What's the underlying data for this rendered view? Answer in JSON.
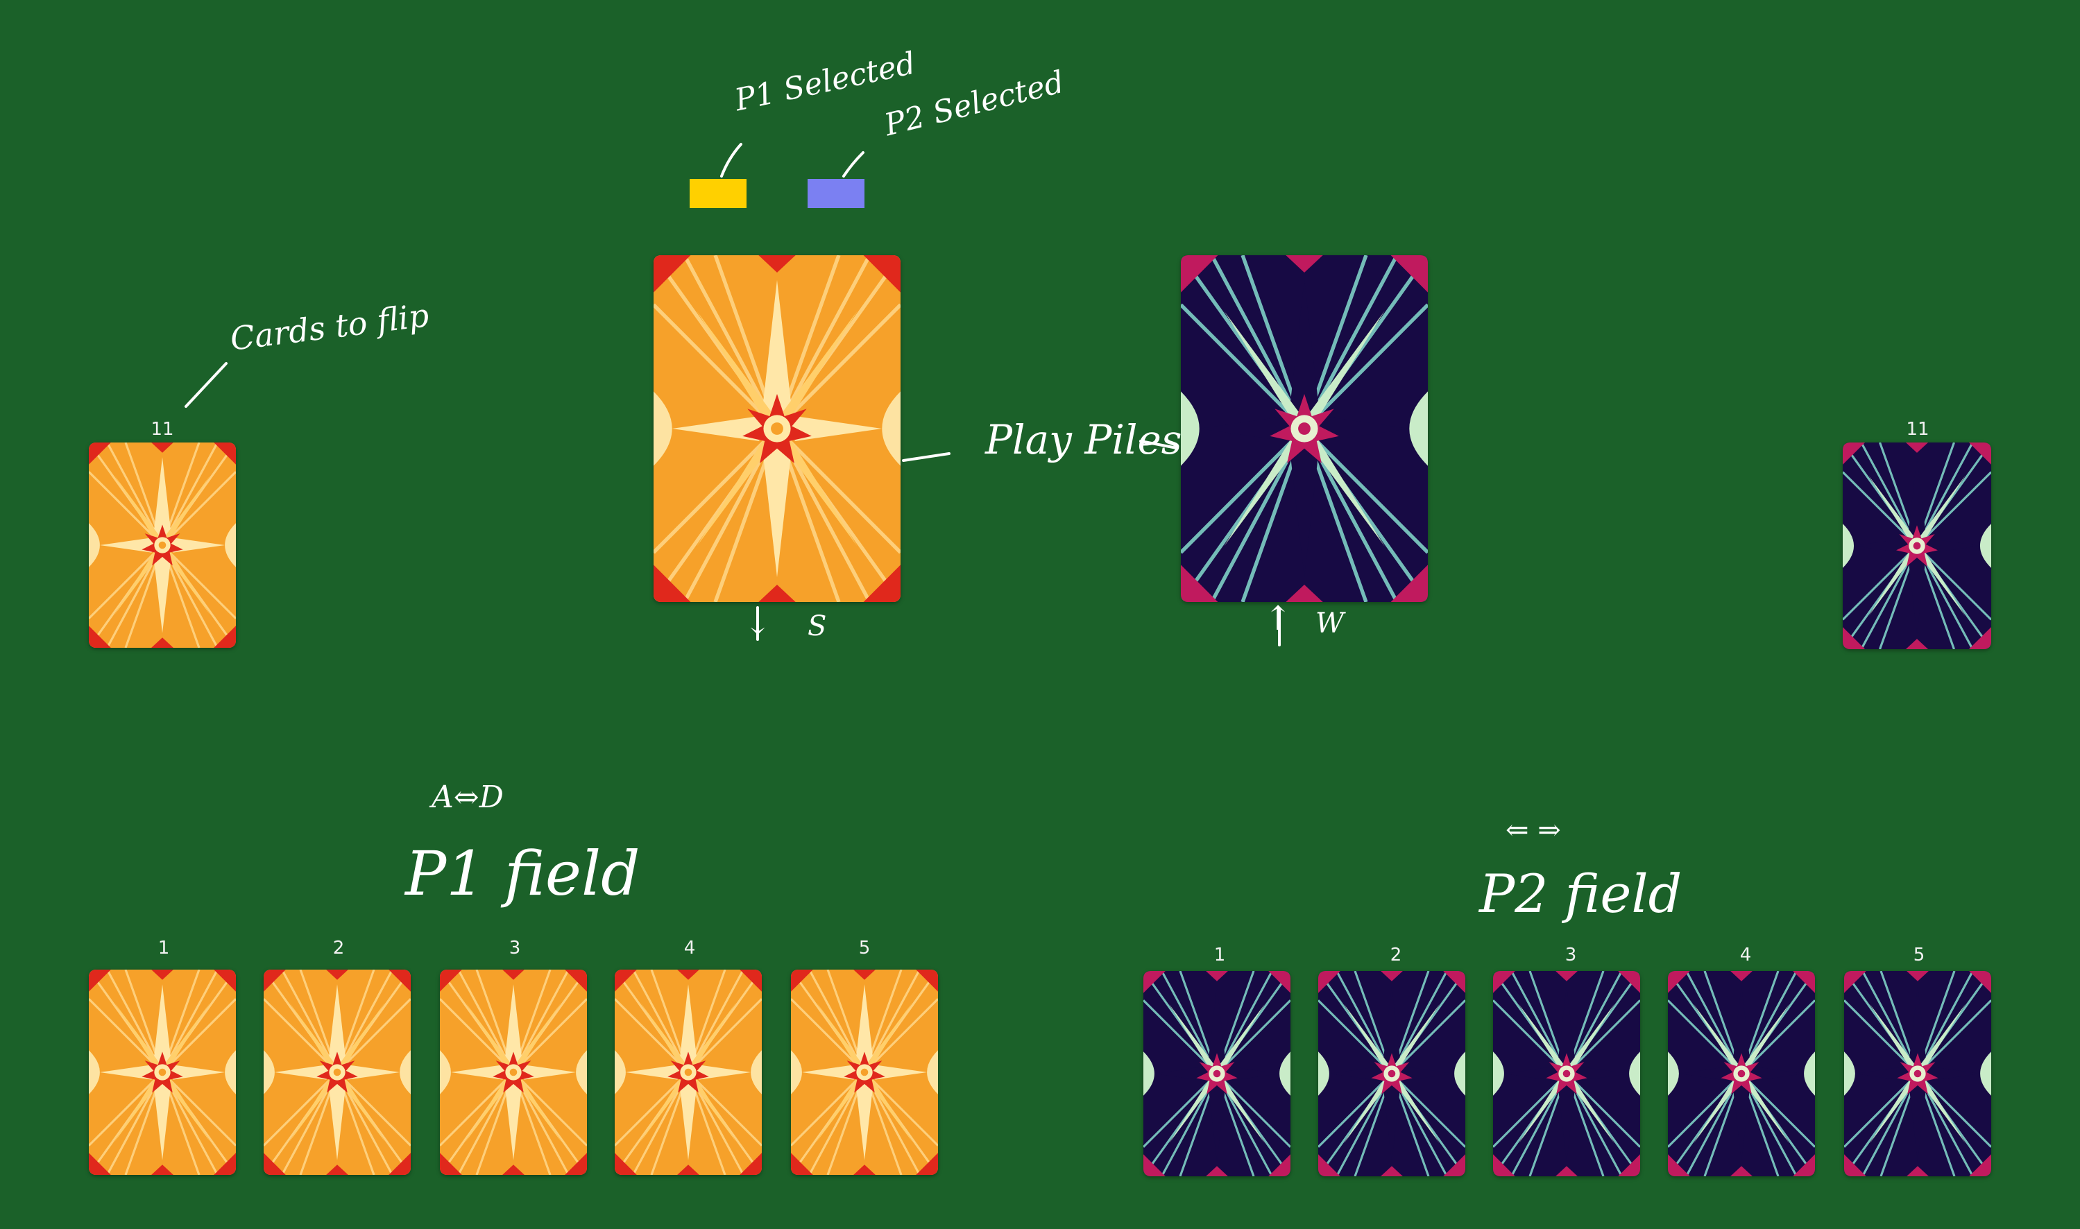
{
  "colors": {
    "table": "#1b6129",
    "p1_selected": "#ffd000",
    "p2_selected": "#7b80f2",
    "orange_back_bg": "#f6a12a",
    "orange_back_ray": "#ffd88a",
    "orange_back_accent": "#e0281c",
    "navy_back_bg": "#170a44",
    "navy_back_ray": "#7fd0c6",
    "navy_back_light": "#c9ecc8",
    "navy_back_accent": "#c01a5e"
  },
  "annotations": {
    "p1_selected": "P1 Selected",
    "p2_selected": "P2 Selected",
    "cards_to_flip": "Cards to flip",
    "play_piles": "Play Piles",
    "p1_play_arrow": "↓",
    "p1_play_key": "S",
    "p2_play_arrow": "↑",
    "p2_play_key": "W",
    "p1_keys": "A⇔D",
    "p2_keys": "⇐ ⇒",
    "p1_field": "P1 field",
    "p2_field": "P2 field"
  },
  "flip_piles": {
    "p1_count": "11",
    "p2_count": "11"
  },
  "p1_field": {
    "slots": [
      {
        "label": "1",
        "back": "orange-back"
      },
      {
        "label": "2",
        "back": "orange-back"
      },
      {
        "label": "3",
        "back": "orange-back"
      },
      {
        "label": "4",
        "back": "orange-back"
      },
      {
        "label": "5",
        "back": "orange-back"
      }
    ]
  },
  "p2_field": {
    "slots": [
      {
        "label": "1",
        "back": "navy-back"
      },
      {
        "label": "2",
        "back": "navy-back"
      },
      {
        "label": "3",
        "back": "navy-back"
      },
      {
        "label": "4",
        "back": "navy-back"
      },
      {
        "label": "5",
        "back": "navy-back"
      }
    ]
  }
}
